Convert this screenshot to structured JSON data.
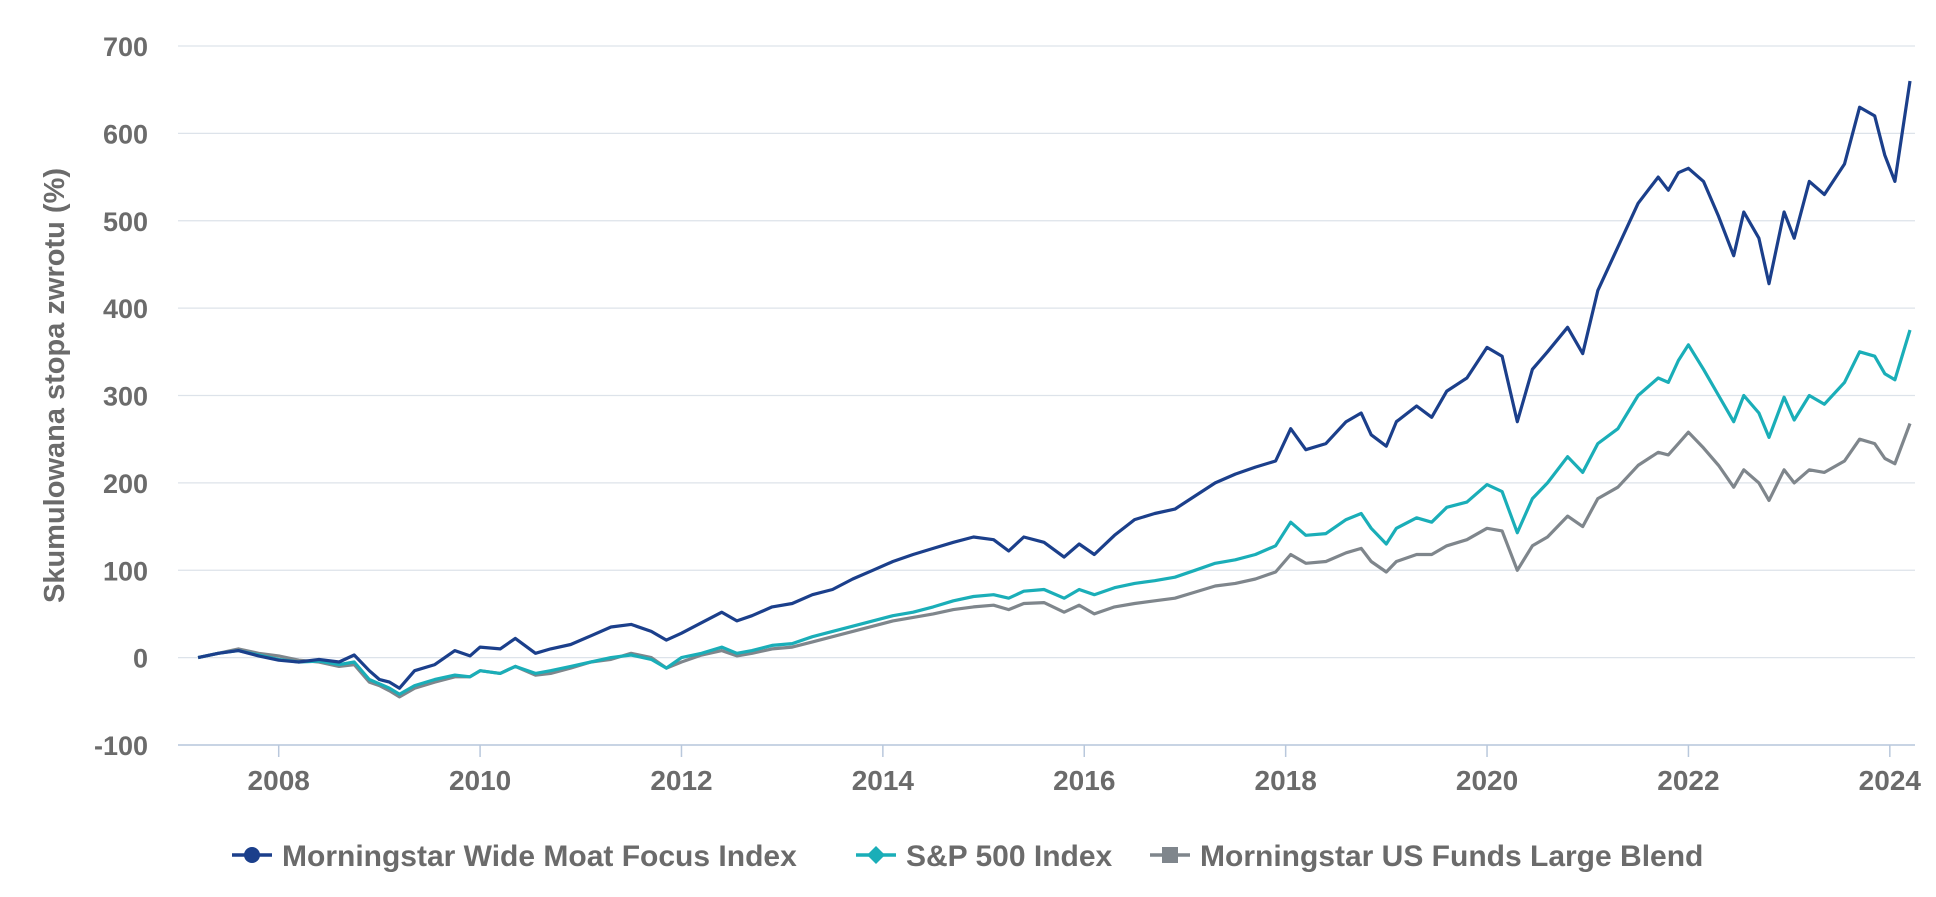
{
  "chart_data": {
    "type": "line",
    "title": "",
    "xlabel": "",
    "ylabel": "Skumulowana stopa zwrotu (%)",
    "xlim": [
      2007.0,
      2024.25
    ],
    "ylim": [
      -100,
      700
    ],
    "yticks": [
      -100,
      0,
      100,
      200,
      300,
      400,
      500,
      600,
      700
    ],
    "ytick_labels": [
      "-100",
      "0",
      "100",
      "200",
      "300",
      "400",
      "500",
      "600",
      "700"
    ],
    "xticks": [
      2008,
      2010,
      2012,
      2014,
      2016,
      2018,
      2020,
      2022,
      2024
    ],
    "xtick_labels": [
      "2008",
      "2010",
      "2012",
      "2014",
      "2016",
      "2018",
      "2020",
      "2022",
      "2024"
    ],
    "grid": "horizontal",
    "legend_position": "bottom",
    "series": [
      {
        "name": "Morningstar Wide Moat Focus Index",
        "color": "#1b3f8b",
        "marker": "circle",
        "points": [
          [
            2007.2,
            0
          ],
          [
            2007.4,
            5
          ],
          [
            2007.6,
            8
          ],
          [
            2007.8,
            2
          ],
          [
            2008.0,
            -3
          ],
          [
            2008.2,
            -5
          ],
          [
            2008.4,
            -2
          ],
          [
            2008.6,
            -5
          ],
          [
            2008.75,
            3
          ],
          [
            2008.9,
            -15
          ],
          [
            2009.0,
            -25
          ],
          [
            2009.1,
            -28
          ],
          [
            2009.2,
            -35
          ],
          [
            2009.35,
            -15
          ],
          [
            2009.55,
            -8
          ],
          [
            2009.75,
            8
          ],
          [
            2009.9,
            2
          ],
          [
            2010.0,
            12
          ],
          [
            2010.2,
            10
          ],
          [
            2010.35,
            22
          ],
          [
            2010.55,
            5
          ],
          [
            2010.7,
            10
          ],
          [
            2010.9,
            15
          ],
          [
            2011.1,
            25
          ],
          [
            2011.3,
            35
          ],
          [
            2011.5,
            38
          ],
          [
            2011.7,
            30
          ],
          [
            2011.85,
            20
          ],
          [
            2012.0,
            28
          ],
          [
            2012.2,
            40
          ],
          [
            2012.4,
            52
          ],
          [
            2012.55,
            42
          ],
          [
            2012.7,
            48
          ],
          [
            2012.9,
            58
          ],
          [
            2013.1,
            62
          ],
          [
            2013.3,
            72
          ],
          [
            2013.5,
            78
          ],
          [
            2013.7,
            90
          ],
          [
            2013.9,
            100
          ],
          [
            2014.1,
            110
          ],
          [
            2014.3,
            118
          ],
          [
            2014.5,
            125
          ],
          [
            2014.7,
            132
          ],
          [
            2014.9,
            138
          ],
          [
            2015.1,
            135
          ],
          [
            2015.25,
            122
          ],
          [
            2015.4,
            138
          ],
          [
            2015.6,
            132
          ],
          [
            2015.8,
            115
          ],
          [
            2015.95,
            130
          ],
          [
            2016.1,
            118
          ],
          [
            2016.3,
            140
          ],
          [
            2016.5,
            158
          ],
          [
            2016.7,
            165
          ],
          [
            2016.9,
            170
          ],
          [
            2017.1,
            185
          ],
          [
            2017.3,
            200
          ],
          [
            2017.5,
            210
          ],
          [
            2017.7,
            218
          ],
          [
            2017.9,
            225
          ],
          [
            2018.05,
            262
          ],
          [
            2018.2,
            238
          ],
          [
            2018.4,
            245
          ],
          [
            2018.6,
            270
          ],
          [
            2018.75,
            280
          ],
          [
            2018.85,
            255
          ],
          [
            2019.0,
            242
          ],
          [
            2019.1,
            270
          ],
          [
            2019.3,
            288
          ],
          [
            2019.45,
            275
          ],
          [
            2019.6,
            305
          ],
          [
            2019.8,
            320
          ],
          [
            2020.0,
            355
          ],
          [
            2020.15,
            345
          ],
          [
            2020.3,
            270
          ],
          [
            2020.45,
            330
          ],
          [
            2020.6,
            350
          ],
          [
            2020.8,
            378
          ],
          [
            2020.95,
            348
          ],
          [
            2021.1,
            420
          ],
          [
            2021.3,
            470
          ],
          [
            2021.5,
            520
          ],
          [
            2021.7,
            550
          ],
          [
            2021.8,
            535
          ],
          [
            2021.9,
            555
          ],
          [
            2022.0,
            560
          ],
          [
            2022.15,
            545
          ],
          [
            2022.3,
            505
          ],
          [
            2022.45,
            460
          ],
          [
            2022.55,
            510
          ],
          [
            2022.7,
            480
          ],
          [
            2022.8,
            428
          ],
          [
            2022.95,
            510
          ],
          [
            2023.05,
            480
          ],
          [
            2023.2,
            545
          ],
          [
            2023.35,
            530
          ],
          [
            2023.55,
            565
          ],
          [
            2023.7,
            630
          ],
          [
            2023.85,
            620
          ],
          [
            2023.95,
            575
          ],
          [
            2024.05,
            545
          ],
          [
            2024.2,
            660
          ]
        ]
      },
      {
        "name": "S&P 500 Index",
        "color": "#1aaeb8",
        "marker": "diamond",
        "points": [
          [
            2007.2,
            0
          ],
          [
            2007.4,
            5
          ],
          [
            2007.6,
            8
          ],
          [
            2007.8,
            3
          ],
          [
            2008.0,
            -2
          ],
          [
            2008.2,
            -5
          ],
          [
            2008.4,
            -4
          ],
          [
            2008.6,
            -8
          ],
          [
            2008.75,
            -5
          ],
          [
            2008.9,
            -25
          ],
          [
            2009.0,
            -30
          ],
          [
            2009.1,
            -35
          ],
          [
            2009.2,
            -42
          ],
          [
            2009.35,
            -32
          ],
          [
            2009.55,
            -25
          ],
          [
            2009.75,
            -20
          ],
          [
            2009.9,
            -22
          ],
          [
            2010.0,
            -15
          ],
          [
            2010.2,
            -18
          ],
          [
            2010.35,
            -10
          ],
          [
            2010.55,
            -18
          ],
          [
            2010.7,
            -15
          ],
          [
            2010.9,
            -10
          ],
          [
            2011.1,
            -5
          ],
          [
            2011.3,
            0
          ],
          [
            2011.5,
            3
          ],
          [
            2011.7,
            -2
          ],
          [
            2011.85,
            -12
          ],
          [
            2012.0,
            0
          ],
          [
            2012.2,
            5
          ],
          [
            2012.4,
            12
          ],
          [
            2012.55,
            5
          ],
          [
            2012.7,
            8
          ],
          [
            2012.9,
            14
          ],
          [
            2013.1,
            16
          ],
          [
            2013.3,
            24
          ],
          [
            2013.5,
            30
          ],
          [
            2013.7,
            36
          ],
          [
            2013.9,
            42
          ],
          [
            2014.1,
            48
          ],
          [
            2014.3,
            52
          ],
          [
            2014.5,
            58
          ],
          [
            2014.7,
            65
          ],
          [
            2014.9,
            70
          ],
          [
            2015.1,
            72
          ],
          [
            2015.25,
            68
          ],
          [
            2015.4,
            76
          ],
          [
            2015.6,
            78
          ],
          [
            2015.8,
            68
          ],
          [
            2015.95,
            78
          ],
          [
            2016.1,
            72
          ],
          [
            2016.3,
            80
          ],
          [
            2016.5,
            85
          ],
          [
            2016.7,
            88
          ],
          [
            2016.9,
            92
          ],
          [
            2017.1,
            100
          ],
          [
            2017.3,
            108
          ],
          [
            2017.5,
            112
          ],
          [
            2017.7,
            118
          ],
          [
            2017.9,
            128
          ],
          [
            2018.05,
            155
          ],
          [
            2018.2,
            140
          ],
          [
            2018.4,
            142
          ],
          [
            2018.6,
            158
          ],
          [
            2018.75,
            165
          ],
          [
            2018.85,
            148
          ],
          [
            2019.0,
            130
          ],
          [
            2019.1,
            148
          ],
          [
            2019.3,
            160
          ],
          [
            2019.45,
            155
          ],
          [
            2019.6,
            172
          ],
          [
            2019.8,
            178
          ],
          [
            2020.0,
            198
          ],
          [
            2020.15,
            190
          ],
          [
            2020.3,
            143
          ],
          [
            2020.45,
            182
          ],
          [
            2020.6,
            200
          ],
          [
            2020.8,
            230
          ],
          [
            2020.95,
            212
          ],
          [
            2021.1,
            245
          ],
          [
            2021.3,
            262
          ],
          [
            2021.5,
            300
          ],
          [
            2021.7,
            320
          ],
          [
            2021.8,
            315
          ],
          [
            2021.9,
            340
          ],
          [
            2022.0,
            358
          ],
          [
            2022.15,
            330
          ],
          [
            2022.3,
            300
          ],
          [
            2022.45,
            270
          ],
          [
            2022.55,
            300
          ],
          [
            2022.7,
            280
          ],
          [
            2022.8,
            252
          ],
          [
            2022.95,
            298
          ],
          [
            2023.05,
            272
          ],
          [
            2023.2,
            300
          ],
          [
            2023.35,
            290
          ],
          [
            2023.55,
            315
          ],
          [
            2023.7,
            350
          ],
          [
            2023.85,
            345
          ],
          [
            2023.95,
            325
          ],
          [
            2024.05,
            318
          ],
          [
            2024.2,
            375
          ]
        ]
      },
      {
        "name": "Morningstar US Funds Large Blend",
        "color": "#7f868c",
        "marker": "square",
        "points": [
          [
            2007.2,
            0
          ],
          [
            2007.4,
            5
          ],
          [
            2007.6,
            10
          ],
          [
            2007.8,
            5
          ],
          [
            2008.0,
            2
          ],
          [
            2008.2,
            -3
          ],
          [
            2008.4,
            -5
          ],
          [
            2008.6,
            -10
          ],
          [
            2008.75,
            -8
          ],
          [
            2008.9,
            -28
          ],
          [
            2009.0,
            -32
          ],
          [
            2009.1,
            -38
          ],
          [
            2009.2,
            -45
          ],
          [
            2009.35,
            -35
          ],
          [
            2009.55,
            -28
          ],
          [
            2009.75,
            -22
          ],
          [
            2009.9,
            -22
          ],
          [
            2010.0,
            -15
          ],
          [
            2010.2,
            -18
          ],
          [
            2010.35,
            -10
          ],
          [
            2010.55,
            -20
          ],
          [
            2010.7,
            -18
          ],
          [
            2010.9,
            -12
          ],
          [
            2011.1,
            -5
          ],
          [
            2011.3,
            -2
          ],
          [
            2011.5,
            5
          ],
          [
            2011.7,
            0
          ],
          [
            2011.85,
            -12
          ],
          [
            2012.0,
            -5
          ],
          [
            2012.2,
            3
          ],
          [
            2012.4,
            8
          ],
          [
            2012.55,
            2
          ],
          [
            2012.7,
            5
          ],
          [
            2012.9,
            10
          ],
          [
            2013.1,
            12
          ],
          [
            2013.3,
            18
          ],
          [
            2013.5,
            24
          ],
          [
            2013.7,
            30
          ],
          [
            2013.9,
            36
          ],
          [
            2014.1,
            42
          ],
          [
            2014.3,
            46
          ],
          [
            2014.5,
            50
          ],
          [
            2014.7,
            55
          ],
          [
            2014.9,
            58
          ],
          [
            2015.1,
            60
          ],
          [
            2015.25,
            55
          ],
          [
            2015.4,
            62
          ],
          [
            2015.6,
            63
          ],
          [
            2015.8,
            52
          ],
          [
            2015.95,
            60
          ],
          [
            2016.1,
            50
          ],
          [
            2016.3,
            58
          ],
          [
            2016.5,
            62
          ],
          [
            2016.7,
            65
          ],
          [
            2016.9,
            68
          ],
          [
            2017.1,
            75
          ],
          [
            2017.3,
            82
          ],
          [
            2017.5,
            85
          ],
          [
            2017.7,
            90
          ],
          [
            2017.9,
            98
          ],
          [
            2018.05,
            118
          ],
          [
            2018.2,
            108
          ],
          [
            2018.4,
            110
          ],
          [
            2018.6,
            120
          ],
          [
            2018.75,
            125
          ],
          [
            2018.85,
            110
          ],
          [
            2019.0,
            98
          ],
          [
            2019.1,
            110
          ],
          [
            2019.3,
            118
          ],
          [
            2019.45,
            118
          ],
          [
            2019.6,
            128
          ],
          [
            2019.8,
            135
          ],
          [
            2020.0,
            148
          ],
          [
            2020.15,
            145
          ],
          [
            2020.3,
            100
          ],
          [
            2020.45,
            128
          ],
          [
            2020.6,
            138
          ],
          [
            2020.8,
            162
          ],
          [
            2020.95,
            150
          ],
          [
            2021.1,
            182
          ],
          [
            2021.3,
            195
          ],
          [
            2021.5,
            220
          ],
          [
            2021.7,
            235
          ],
          [
            2021.8,
            232
          ],
          [
            2021.9,
            245
          ],
          [
            2022.0,
            258
          ],
          [
            2022.15,
            240
          ],
          [
            2022.3,
            220
          ],
          [
            2022.45,
            195
          ],
          [
            2022.55,
            215
          ],
          [
            2022.7,
            200
          ],
          [
            2022.8,
            180
          ],
          [
            2022.95,
            215
          ],
          [
            2023.05,
            200
          ],
          [
            2023.2,
            215
          ],
          [
            2023.35,
            212
          ],
          [
            2023.55,
            225
          ],
          [
            2023.7,
            250
          ],
          [
            2023.85,
            245
          ],
          [
            2023.95,
            228
          ],
          [
            2024.05,
            222
          ],
          [
            2024.2,
            268
          ]
        ]
      }
    ]
  }
}
